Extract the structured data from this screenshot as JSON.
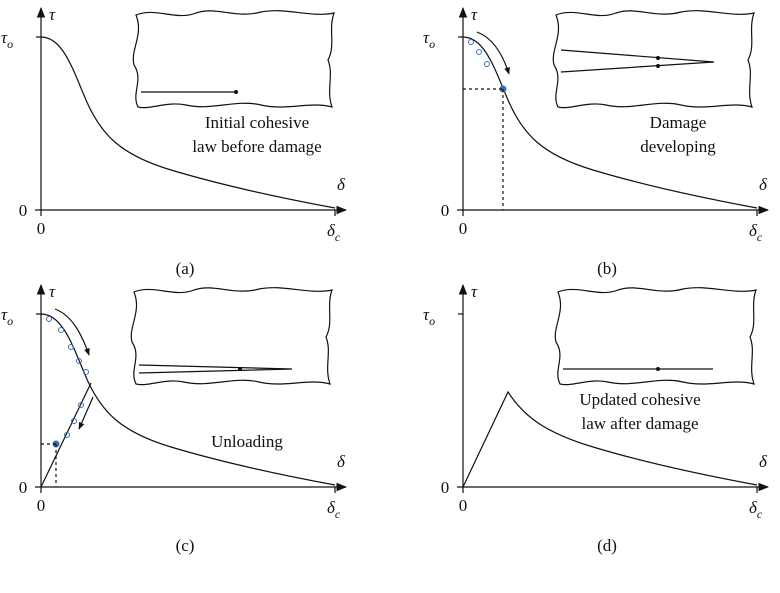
{
  "panels": [
    {
      "y_axis": "τ",
      "x_axis": "δ",
      "y_mark": {
        "main": "τ",
        "sub": "o"
      },
      "y_zero": "0",
      "x_zero": "0",
      "x_end": {
        "main": "δ",
        "sub": "c"
      },
      "caption": [
        "Initial cohesive",
        "law before damage"
      ],
      "label": "(a)"
    },
    {
      "y_axis": "τ",
      "x_axis": "δ",
      "y_mark": {
        "main": "τ",
        "sub": "o"
      },
      "y_zero": "0",
      "x_zero": "0",
      "x_end": {
        "main": "δ",
        "sub": "c"
      },
      "caption": [
        "Damage",
        "developing"
      ],
      "label": "(b)"
    },
    {
      "y_axis": "τ",
      "x_axis": "δ",
      "y_mark": {
        "main": "τ",
        "sub": "o"
      },
      "y_zero": "0",
      "x_zero": "0",
      "x_end": {
        "main": "δ",
        "sub": "c"
      },
      "caption": [
        "Unloading"
      ],
      "label": "(c)"
    },
    {
      "y_axis": "τ",
      "x_axis": "δ",
      "y_mark": {
        "main": "τ",
        "sub": "o"
      },
      "y_zero": "0",
      "x_zero": "0",
      "x_end": {
        "main": "δ",
        "sub": "c"
      },
      "caption": [
        "Updated cohesive",
        "law after damage"
      ],
      "label": "(d)"
    }
  ]
}
